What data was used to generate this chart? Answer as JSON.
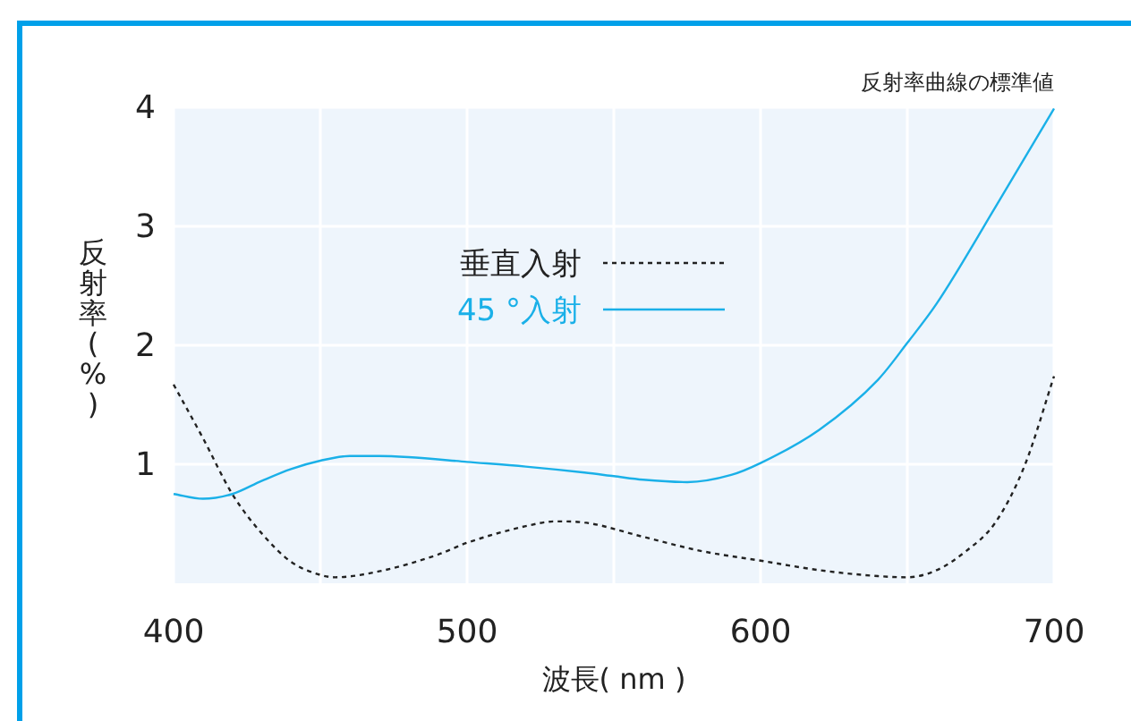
{
  "chart_data": {
    "type": "line",
    "title": "反射率曲線の標準値",
    "xlabel": "波長( nm )",
    "ylabel": "反射率(%)",
    "xlim": [
      400,
      700
    ],
    "ylim": [
      0,
      4
    ],
    "xticks": [
      400,
      {
        "value": 450,
        "label": null
      },
      500,
      {
        "value": 550,
        "label": null
      },
      600,
      {
        "value": 650,
        "label": null
      },
      700
    ],
    "yticks": [
      1,
      2,
      3,
      4
    ],
    "grid": true,
    "legend": "top",
    "marker": "none",
    "series": [
      {
        "name": "垂直入射",
        "color": "#222222",
        "line_style": "dotted",
        "x": [
          400,
          410,
          420,
          430,
          440,
          450,
          455,
          470,
          490,
          500,
          520,
          530,
          540,
          560,
          580,
          600,
          620,
          640,
          650,
          660,
          670,
          680,
          690,
          700
        ],
        "values": [
          1.67,
          1.22,
          0.75,
          0.42,
          0.18,
          0.07,
          0.05,
          0.1,
          0.24,
          0.34,
          0.48,
          0.52,
          0.51,
          0.39,
          0.27,
          0.19,
          0.11,
          0.06,
          0.05,
          0.11,
          0.27,
          0.51,
          0.99,
          1.74
        ]
      },
      {
        "name": "45 °入射",
        "color": "#1ab0e8",
        "line_style": "solid",
        "x": [
          400,
          410,
          420,
          430,
          440,
          450,
          460,
          470,
          480,
          500,
          520,
          540,
          550,
          560,
          575,
          590,
          600,
          620,
          640,
          650,
          660,
          680,
          700
        ],
        "values": [
          0.75,
          0.71,
          0.75,
          0.86,
          0.96,
          1.03,
          1.07,
          1.07,
          1.06,
          1.02,
          0.98,
          0.93,
          0.9,
          0.87,
          0.85,
          0.91,
          1.01,
          1.29,
          1.71,
          2.02,
          2.35,
          3.16,
          3.99
        ]
      }
    ]
  }
}
